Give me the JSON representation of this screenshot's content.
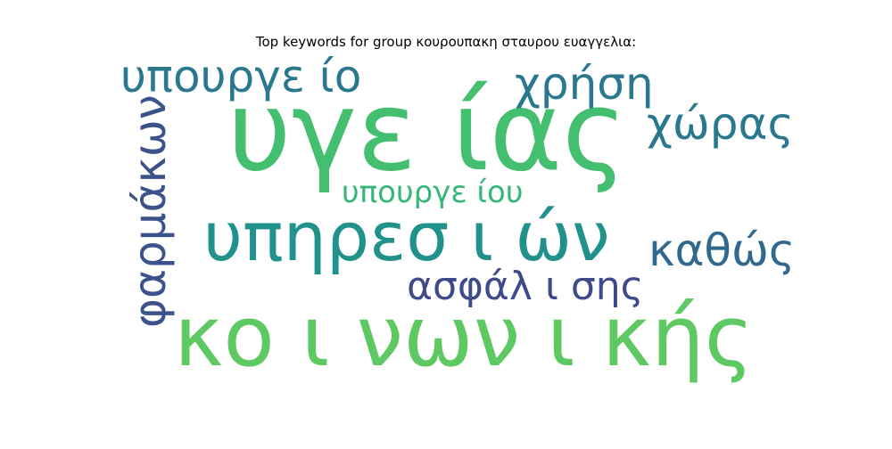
{
  "chart_data": {
    "type": "wordcloud",
    "title": "Top keywords for group κουρουπακη σταυρου ευαγγελια:",
    "words": [
      {
        "text": "υγε ίας",
        "weight": 1.0,
        "color": "#44bf70",
        "orientation": "horizontal"
      },
      {
        "text": "κο ι νων ι κής",
        "weight": 0.97,
        "color": "#5ec962",
        "orientation": "horizontal"
      },
      {
        "text": "υπηρεσ ι ών",
        "weight": 0.78,
        "color": "#21918c",
        "orientation": "horizontal"
      },
      {
        "text": "υπουργε ίο",
        "weight": 0.52,
        "color": "#2a788e",
        "orientation": "horizontal"
      },
      {
        "text": "χρήση",
        "weight": 0.52,
        "color": "#2a788e",
        "orientation": "horizontal"
      },
      {
        "text": "χώρας",
        "weight": 0.5,
        "color": "#2a788e",
        "orientation": "horizontal"
      },
      {
        "text": "φαρμάκων",
        "weight": 0.5,
        "color": "#3b528b",
        "orientation": "vertical"
      },
      {
        "text": "καθώς",
        "weight": 0.5,
        "color": "#31688e",
        "orientation": "horizontal"
      },
      {
        "text": "ασφάλ ι σης",
        "weight": 0.47,
        "color": "#3e4a89",
        "orientation": "horizontal"
      },
      {
        "text": "υπουργε ίου",
        "weight": 0.35,
        "color": "#35b779",
        "orientation": "horizontal"
      }
    ]
  }
}
